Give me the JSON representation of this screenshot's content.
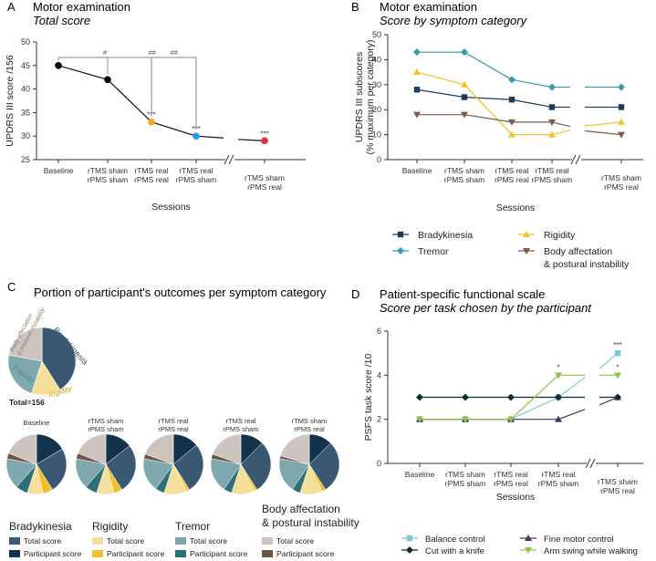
{
  "panelA": {
    "letter": "A",
    "title": "Motor examination",
    "subtitle": "Total score",
    "chart_data": {
      "type": "line",
      "title": "Motor examination",
      "subtitle": "Total score",
      "xlabel": "Sessions",
      "ylabel": "UPDRS III score /156",
      "ylim": [
        25,
        50
      ],
      "yticks": [
        "25",
        "30",
        "35",
        "40",
        "45",
        "50"
      ],
      "categories": [
        [
          "Baseline"
        ],
        [
          "rTMS sham",
          "rPMS sham"
        ],
        [
          "rTMS real",
          "rPMS real"
        ],
        [
          "rTMS real",
          "rPMS sham"
        ],
        [
          "rTMS sham",
          "rPMS real"
        ]
      ],
      "values": [
        45,
        42,
        33,
        30,
        29
      ],
      "point_colors": [
        "#000000",
        "#000000",
        "#f5a623",
        "#1e9be9",
        "#e8322a"
      ],
      "point_stars": [
        "",
        "",
        "***",
        "***",
        "***"
      ],
      "brackets": [
        {
          "from": 0,
          "to": 2,
          "label": "#"
        },
        {
          "from": 1,
          "to": 3,
          "label": "##"
        },
        {
          "from": 2,
          "to": 3,
          "label": "##"
        }
      ]
    }
  },
  "panelB": {
    "letter": "B",
    "title": "Motor examination",
    "subtitle": "Score by symptom category",
    "chart_data": {
      "type": "line",
      "title": "Motor examination",
      "subtitle": "Score by symptom category",
      "xlabel": "Sessions",
      "ylabel": "UPDRS III subscores",
      "ylabel2": "(% maximum per category)",
      "ylim": [
        0,
        50
      ],
      "yticks": [
        "0",
        "10",
        "20",
        "30",
        "40",
        "50"
      ],
      "categories": [
        [
          "Baseline"
        ],
        [
          "rTMS sham",
          "rPMS sham"
        ],
        [
          "rTMS real",
          "rPMS real"
        ],
        [
          "rTMS real",
          "rPMS sham"
        ],
        [
          "rTMS sham",
          "rPMS real"
        ]
      ],
      "series": [
        {
          "name": "Bradykinesia",
          "values": [
            28,
            25,
            24,
            21,
            21
          ],
          "color": "#1d3b5a",
          "marker": "square"
        },
        {
          "name": "Rigidity",
          "values": [
            35,
            30,
            10,
            10,
            15
          ],
          "color": "#f2c232",
          "marker": "triangle"
        },
        {
          "name": "Tremor",
          "values": [
            43,
            43,
            32,
            29,
            29
          ],
          "color": "#3a9aa6",
          "marker": "diamond"
        },
        {
          "name": "Body affectation & postural instability",
          "values": [
            18,
            18,
            15,
            15,
            10
          ],
          "color": "#7b5a47",
          "marker": "triangle-down"
        }
      ],
      "legend": [
        {
          "line1": "Bradykinesia",
          "line2": ""
        },
        {
          "line1": "Rigidity",
          "line2": ""
        },
        {
          "line1": "Tremor",
          "line2": ""
        },
        {
          "line1": "Body affectation",
          "line2": "& postural instability"
        }
      ]
    }
  },
  "panelC": {
    "letter": "C",
    "title": "Portion of participant's outcomes per symptom category",
    "total_label": "Total=156",
    "big_pie_labels": [
      "Bradykinesia",
      "Rigidity",
      "Tremor",
      "Body affectation",
      "& postural instability"
    ],
    "chart_data": {
      "type": "pie",
      "title": "Portion of participant's outcomes per symptom category",
      "total": 156,
      "categories": [
        "Bradykinesia",
        "Rigidity",
        "Tremor",
        "Body affectation & postural instability"
      ],
      "total_score_share": [
        0.41,
        0.14,
        0.23,
        0.22
      ],
      "participant_share": [
        {
          "session": "Baseline",
          "values": [
            0.165,
            0.055,
            0.065,
            0.03
          ]
        },
        {
          "session": "rTMS sham rPMS sham",
          "values": [
            0.145,
            0.045,
            0.065,
            0.03
          ]
        },
        {
          "session": "rTMS real rPMS real",
          "values": [
            0.14,
            0.015,
            0.05,
            0.025
          ]
        },
        {
          "session": "rTMS real rPMS sham",
          "values": [
            0.125,
            0.015,
            0.045,
            0.025
          ]
        },
        {
          "session": "rTMS sham rPMS real",
          "values": [
            0.125,
            0.02,
            0.045,
            0.016
          ]
        }
      ],
      "colors_total": [
        "#3b5873",
        "#f6df9a",
        "#7ea8ad",
        "#cdc5bd"
      ],
      "colors_participant": [
        "#13324b",
        "#f1c02c",
        "#2c7078",
        "#6d5445"
      ]
    },
    "small_pie_labels": [
      [
        "Baseline",
        ""
      ],
      [
        "rTMS sham",
        "rPMS sham"
      ],
      [
        "rTMS real",
        "rPMS real"
      ],
      [
        "rTMS real",
        "rPMS sham"
      ],
      [
        "rTMS sham",
        "rPMS real"
      ]
    ],
    "legend": {
      "groups": [
        {
          "title": "Bradykinesia",
          "title2": "",
          "total": "Total score",
          "participant": "Participant score"
        },
        {
          "title": "Rigidity",
          "title2": "",
          "total": "Total score",
          "participant": "Participant score"
        },
        {
          "title": "Tremor",
          "title2": "",
          "total": "Total score",
          "participant": "Participant score"
        },
        {
          "title": "Body affectation",
          "title2": "& postural instability",
          "total": "Total score",
          "participant": "Participant score"
        }
      ]
    }
  },
  "panelD": {
    "letter": "D",
    "title": "Patient-specific functional scale",
    "subtitle": "Score per task chosen by the participant",
    "chart_data": {
      "type": "line",
      "title": "Patient-specific functional scale",
      "subtitle": "Score per task chosen by the participant",
      "xlabel": "Sessions",
      "ylabel": "PSFS task score /10",
      "ylim": [
        0,
        6
      ],
      "yticks": [
        "0",
        "2",
        "4",
        "6"
      ],
      "categories": [
        [
          "Baseline"
        ],
        [
          "rTMS sham",
          "rPMS sham"
        ],
        [
          "rTMS real",
          "rPMS real"
        ],
        [
          "rTMS real",
          "rPMS sham"
        ],
        [
          "rTMS sham",
          "rPMS real"
        ]
      ],
      "series": [
        {
          "name": "Balance control",
          "values": [
            2,
            2,
            2,
            3,
            5
          ],
          "color": "#7cc6da",
          "marker": "square",
          "stars": [
            "",
            "",
            "",
            "",
            "***"
          ]
        },
        {
          "name": "Fine motor control",
          "values": [
            2,
            2,
            2,
            2,
            3
          ],
          "color": "#4a2f66",
          "marker": "triangle",
          "stars": [
            "",
            "",
            "",
            "",
            ""
          ]
        },
        {
          "name": "Cut with a knife",
          "values": [
            3,
            3,
            3,
            3,
            3
          ],
          "color": "#0f2d2f",
          "marker": "diamond",
          "stars": [
            "",
            "",
            "",
            "",
            ""
          ]
        },
        {
          "name": "Arm swing while walking",
          "values": [
            2,
            2,
            2,
            4,
            4
          ],
          "color": "#8dc63f",
          "marker": "triangle-down",
          "stars": [
            "",
            "",
            "",
            "*",
            "*"
          ]
        }
      ]
    }
  }
}
